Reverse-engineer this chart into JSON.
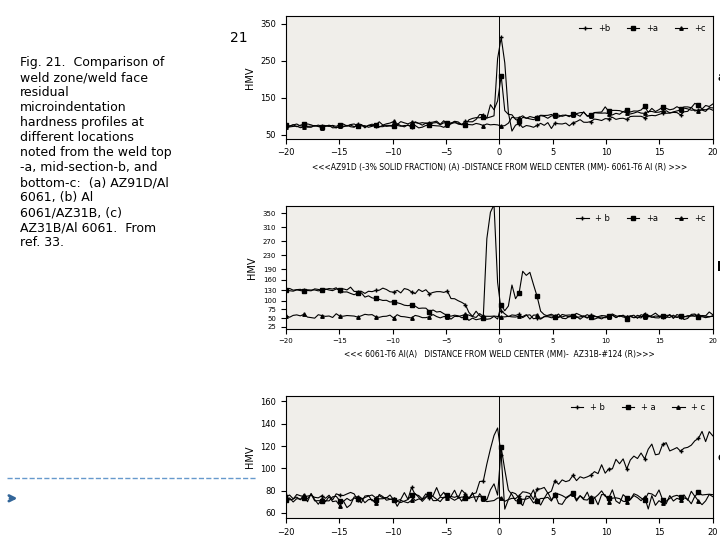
{
  "fig_number": "21",
  "caption": "Fig. 21.  Comparison of\nweld zone/weld face\nresidual\nmicroindentation\nhardness profiles at\ndifferent locations\nnoted from the weld top\n-a, mid-section-b, and\nbottom-c:  (a) AZ91D/Al\n6061, (b) Al\n6061/AZ31B, (c)\nAZ31B/Al 6061.  From\nref. 33.",
  "bg_color": "#ffffff",
  "plot_bg": "#f0eeea",
  "panels": [
    {
      "label": "a",
      "xlabel": "<<<AZ91D (-3% SOLID FRACTION) (A) -DISTANCE FROM WELD CENTER (MM)- 6061-T6 Al (R) >>>",
      "ylabel": "HMV",
      "xlim": [
        -20,
        20
      ],
      "yticks": [
        50,
        150,
        250,
        350
      ],
      "ylim": [
        40,
        370
      ],
      "legend": [
        "+b",
        "+a",
        "+c"
      ],
      "vline": 0
    },
    {
      "label": "b",
      "xlabel": "<<< 6061-T6 Al(A)   DISTANCE FROM WELD CENTER (MM)-  AZ31B-#124 (R)>>>",
      "ylabel": "HMV",
      "xlim": [
        -20,
        20
      ],
      "yticks": [
        25,
        50,
        75,
        100,
        130,
        160,
        190,
        230,
        270,
        310,
        350
      ],
      "ylim": [
        20,
        370
      ],
      "legend": [
        "+ b",
        "+a",
        "+c"
      ],
      "vline": 0
    },
    {
      "label": "c",
      "xlabel": "< AZ31B-1024 (A)  -DISTANCE FROM WELD CENTER (MM)-  6061-T6 A1(R)>",
      "ylabel": "HMV",
      "xlim": [
        -20,
        20
      ],
      "yticks": [
        60,
        80,
        100,
        120,
        140,
        160
      ],
      "ylim": [
        55,
        165
      ],
      "legend": [
        "+ b",
        "+ a",
        "+ c"
      ],
      "vline": 0
    }
  ]
}
